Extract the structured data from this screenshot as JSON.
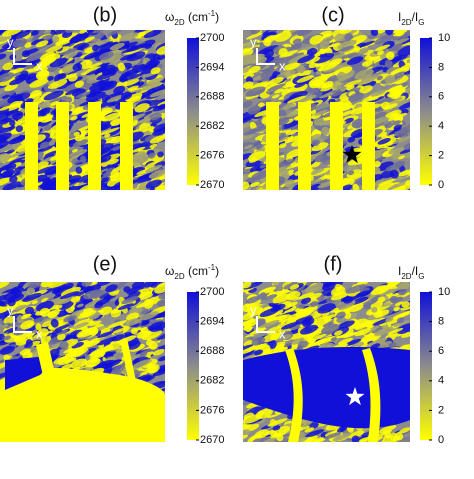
{
  "chart_data": [
    {
      "type": "heatmap",
      "title": "(b)",
      "colorbar_label": [
        "ω",
        "2D",
        " (cm",
        "-1",
        ")"
      ],
      "clim": [
        2670,
        2700
      ],
      "cticks": [
        2670,
        2676,
        2682,
        2688,
        2694,
        2700
      ],
      "colormap": [
        "#ffff00",
        "#8c8c8c",
        "#1010d8"
      ],
      "xlabel": "x",
      "ylabel": "y"
    },
    {
      "type": "heatmap",
      "title": "(c)",
      "colorbar_label": [
        "I",
        "2D",
        "/I",
        "G"
      ],
      "clim": [
        0,
        10
      ],
      "cticks": [
        0,
        2,
        4,
        6,
        8,
        10
      ],
      "colormap": [
        "#ffff00",
        "#8c8c8c",
        "#1010d8"
      ],
      "xlabel": "x",
      "ylabel": "y"
    },
    {
      "type": "heatmap",
      "title": "(e)",
      "colorbar_label": [
        "ω",
        "2D",
        " (cm",
        "-1",
        ")"
      ],
      "clim": [
        2670,
        2700
      ],
      "cticks": [
        2670,
        2676,
        2682,
        2688,
        2694,
        2700
      ],
      "colormap": [
        "#ffff00",
        "#8c8c8c",
        "#1010d8"
      ],
      "xlabel": "x",
      "ylabel": "y"
    },
    {
      "type": "heatmap",
      "title": "(f)",
      "colorbar_label": [
        "I",
        "2D",
        "/I",
        "G"
      ],
      "clim": [
        0,
        10
      ],
      "cticks": [
        0,
        2,
        4,
        6,
        8,
        10
      ],
      "colormap": [
        "#ffff00",
        "#8c8c8c",
        "#1010d8"
      ],
      "xlabel": "x",
      "ylabel": "y"
    }
  ]
}
